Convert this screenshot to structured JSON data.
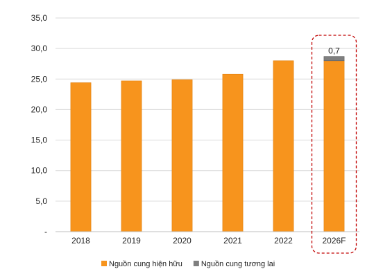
{
  "chart_data": {
    "type": "bar",
    "stacked": true,
    "categories": [
      "2018",
      "2019",
      "2020",
      "2021",
      "2022",
      "2026F"
    ],
    "series": [
      {
        "name": "Nguồn cung hiện hữu",
        "color": "#F7941D",
        "values": [
          24.4,
          24.7,
          24.9,
          25.8,
          28.0,
          28.0
        ]
      },
      {
        "name": "Nguồn cung tương lai",
        "color": "#7F7F7F",
        "values": [
          0,
          0,
          0,
          0,
          0,
          0.7
        ]
      }
    ],
    "data_labels": [
      {
        "category": "2026F",
        "series": "Nguồn cung tương lai",
        "text": "0,7"
      }
    ],
    "y_ticks": [
      "-",
      "5,0",
      "10,0",
      "15,0",
      "20,0",
      "25,0",
      "30,0",
      "35,0"
    ],
    "ylim": [
      0,
      35
    ],
    "y_step": 5,
    "grid": true,
    "legend_position": "bottom",
    "highlight": {
      "category": "2026F",
      "style": "dashed-rounded-box",
      "color": "#C00000"
    },
    "title": "",
    "xlabel": "",
    "ylabel": ""
  }
}
